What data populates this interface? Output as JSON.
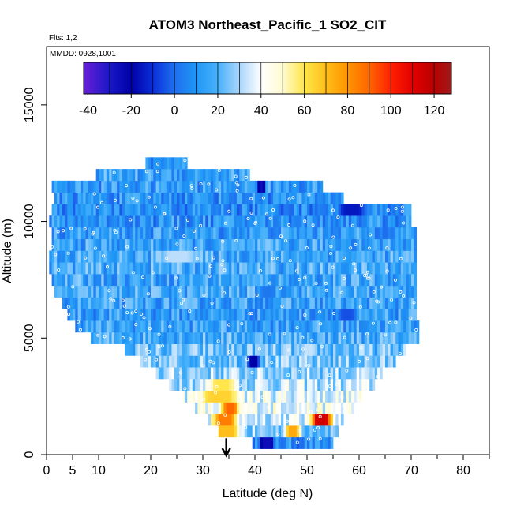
{
  "chart_data": {
    "type": "heatmap",
    "title": "ATOM3 Northeast_Pacific_1 SO2_CIT",
    "annotations": {
      "flights": "Flts: 1,2",
      "dates": "MMDD: 0928,1001"
    },
    "xlabel": "Latitude (deg N)",
    "ylabel": "Altitude (m)",
    "xlim": [
      0,
      85
    ],
    "ylim": [
      0,
      17500
    ],
    "x_ticks": [
      0,
      5,
      10,
      20,
      30,
      40,
      50,
      60,
      70,
      80
    ],
    "y_ticks": [
      0,
      5000,
      10000,
      15000
    ],
    "colorbar": {
      "min": -42,
      "max": 128,
      "ticks": [
        -40,
        -20,
        0,
        20,
        40,
        60,
        80,
        100,
        120
      ],
      "stops": [
        {
          "v": -42,
          "c": "#6a1fd6"
        },
        {
          "v": -30,
          "c": "#1818c8"
        },
        {
          "v": -20,
          "c": "#0000a8"
        },
        {
          "v": -10,
          "c": "#0a2fd8"
        },
        {
          "v": 0,
          "c": "#1f6fef"
        },
        {
          "v": 10,
          "c": "#1f96f5"
        },
        {
          "v": 20,
          "c": "#48b1fb"
        },
        {
          "v": 30,
          "c": "#a9d6fb"
        },
        {
          "v": 40,
          "c": "#ffffff"
        },
        {
          "v": 50,
          "c": "#fffbd0"
        },
        {
          "v": 60,
          "c": "#ffe64a"
        },
        {
          "v": 70,
          "c": "#ffbe1a"
        },
        {
          "v": 80,
          "c": "#ff9400"
        },
        {
          "v": 90,
          "c": "#ff6600"
        },
        {
          "v": 100,
          "c": "#ff2000"
        },
        {
          "v": 110,
          "c": "#e30000"
        },
        {
          "v": 120,
          "c": "#b80000"
        },
        {
          "v": 128,
          "c": "#9e1b1b"
        }
      ]
    },
    "marker": {
      "label": "arrow",
      "x": 34.5,
      "y": 700
    },
    "bands": [
      {
        "alt": 500,
        "lat0": 39.5,
        "lat1": 55,
        "v": 8
      },
      {
        "alt": 1000,
        "lat0": 33,
        "lat1": 56,
        "v": 25
      },
      {
        "alt": 1500,
        "lat0": 31,
        "lat1": 57,
        "v": 35
      },
      {
        "alt": 2000,
        "lat0": 28.5,
        "lat1": 59,
        "v": 40
      },
      {
        "alt": 2500,
        "lat0": 26,
        "lat1": 61,
        "v": 38
      },
      {
        "alt": 3000,
        "lat0": 23.5,
        "lat1": 63,
        "v": 32
      },
      {
        "alt": 3500,
        "lat0": 21,
        "lat1": 65,
        "v": 28
      },
      {
        "alt": 4000,
        "lat0": 18,
        "lat1": 67,
        "v": 24
      },
      {
        "alt": 4500,
        "lat0": 15,
        "lat1": 69,
        "v": 22
      },
      {
        "alt": 5000,
        "lat0": 8.5,
        "lat1": 71.5,
        "v": 18
      },
      {
        "alt": 5500,
        "lat0": 5.5,
        "lat1": 71.5,
        "v": 14
      },
      {
        "alt": 6000,
        "lat0": 4,
        "lat1": 71,
        "v": 12
      },
      {
        "alt": 6500,
        "lat0": 3,
        "lat1": 71,
        "v": 14
      },
      {
        "alt": 7000,
        "lat0": 1.5,
        "lat1": 71,
        "v": 16
      },
      {
        "alt": 7500,
        "lat0": 1,
        "lat1": 71,
        "v": 15
      },
      {
        "alt": 8000,
        "lat0": 0.5,
        "lat1": 71,
        "v": 17
      },
      {
        "alt": 8500,
        "lat0": 0.5,
        "lat1": 71,
        "v": 16
      },
      {
        "alt": 9000,
        "lat0": 1,
        "lat1": 71,
        "v": 14
      },
      {
        "alt": 9500,
        "lat0": 1,
        "lat1": 71,
        "v": 12
      },
      {
        "alt": 10000,
        "lat0": 0.5,
        "lat1": 70,
        "v": 10
      },
      {
        "alt": 10500,
        "lat0": 1,
        "lat1": 70,
        "v": 8
      },
      {
        "alt": 11000,
        "lat0": 1.5,
        "lat1": 57,
        "v": 10
      },
      {
        "alt": 11500,
        "lat0": 1,
        "lat1": 53,
        "v": 12
      },
      {
        "alt": 12000,
        "lat0": 9.5,
        "lat1": 39,
        "v": 14
      },
      {
        "alt": 12500,
        "lat0": 19,
        "lat1": 27,
        "v": 10
      }
    ],
    "hotspots": [
      {
        "alt": 1000,
        "lat0": 30,
        "lat1": 38,
        "v": 70
      },
      {
        "alt": 1500,
        "lat0": 31,
        "lat1": 37,
        "v": 85
      },
      {
        "alt": 1500,
        "lat0": 50,
        "lat1": 55,
        "v": 115
      },
      {
        "alt": 2000,
        "lat0": 33,
        "lat1": 37,
        "v": 90
      },
      {
        "alt": 2500,
        "lat0": 28,
        "lat1": 38,
        "v": 65
      },
      {
        "alt": 3000,
        "lat0": 30,
        "lat1": 37,
        "v": 60
      },
      {
        "alt": 1000,
        "lat0": 45,
        "lat1": 49,
        "v": 75
      },
      {
        "alt": 500,
        "lat0": 40,
        "lat1": 44,
        "v": -25
      },
      {
        "alt": 4000,
        "lat0": 38,
        "lat1": 41,
        "v": -20
      },
      {
        "alt": 10500,
        "lat0": 55,
        "lat1": 62,
        "v": -15
      },
      {
        "alt": 11500,
        "lat0": 40,
        "lat1": 42,
        "v": -25
      },
      {
        "alt": 7000,
        "lat0": 40,
        "lat1": 44,
        "v": 2
      },
      {
        "alt": 6000,
        "lat0": 55,
        "lat1": 60,
        "v": -5
      },
      {
        "alt": 8500,
        "lat0": 20,
        "lat1": 30,
        "v": 32
      }
    ]
  }
}
